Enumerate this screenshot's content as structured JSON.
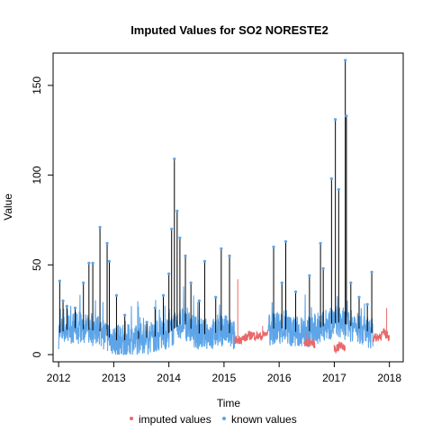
{
  "chart_data": {
    "type": "line",
    "title": "Imputed Values for  SO2 NORESTE2",
    "xlabel": "Time",
    "ylabel": "Value",
    "xlim": [
      2011.9,
      2018.25
    ],
    "ylim": [
      -4,
      168
    ],
    "x_ticks": [
      2012,
      2013,
      2014,
      2015,
      2016,
      2017,
      2018
    ],
    "x_tick_labels": [
      "2012",
      "2013",
      "2014",
      "2015",
      "2016",
      "2017",
      "2018"
    ],
    "y_ticks": [
      0,
      50,
      100,
      150
    ],
    "y_tick_labels": [
      "0",
      "50",
      "100",
      "150"
    ],
    "grid": false,
    "legend_position": "bottom",
    "series": [
      {
        "name": "imputed values",
        "color": "#E8696B",
        "segments": [
          {
            "x": [
              2015.2,
              2015.35,
              2015.5,
              2015.65,
              2015.8
            ],
            "y": [
              8,
              9,
              11,
              10,
              12
            ]
          },
          {
            "x": [
              2016.45,
              2016.55,
              2016.65
            ],
            "y": [
              6,
              7,
              6
            ]
          },
          {
            "x": [
              2017.0,
              2017.1,
              2017.2
            ],
            "y": [
              3,
              5,
              4
            ]
          },
          {
            "x": [
              2017.7,
              2017.8,
              2017.9,
              2018.0
            ],
            "y": [
              9,
              10,
              12,
              10
            ]
          }
        ],
        "spikes": [
          {
            "x": 2015.25,
            "y": 42
          },
          {
            "x": 2015.7,
            "y": 16
          },
          {
            "x": 2016.5,
            "y": 12
          },
          {
            "x": 2017.95,
            "y": 26
          }
        ]
      },
      {
        "name": "known values",
        "color": "#5DA5E8",
        "baseline": [
          {
            "x": 2012.0,
            "y": 12
          },
          {
            "x": 2012.25,
            "y": 15
          },
          {
            "x": 2012.5,
            "y": 14
          },
          {
            "x": 2012.75,
            "y": 13
          },
          {
            "x": 2013.0,
            "y": 8
          },
          {
            "x": 2013.25,
            "y": 8
          },
          {
            "x": 2013.5,
            "y": 9
          },
          {
            "x": 2013.75,
            "y": 10
          },
          {
            "x": 2014.0,
            "y": 12
          },
          {
            "x": 2014.25,
            "y": 18
          },
          {
            "x": 2014.5,
            "y": 12
          },
          {
            "x": 2014.75,
            "y": 11
          },
          {
            "x": 2015.0,
            "y": 14
          },
          {
            "x": 2015.2,
            "y": 10
          },
          {
            "x": 2015.8,
            "y": 14
          },
          {
            "x": 2016.0,
            "y": 15
          },
          {
            "x": 2016.25,
            "y": 13
          },
          {
            "x": 2016.45,
            "y": 12
          },
          {
            "x": 2016.65,
            "y": 14
          },
          {
            "x": 2016.9,
            "y": 17
          },
          {
            "x": 2017.1,
            "y": 18
          },
          {
            "x": 2017.4,
            "y": 15
          },
          {
            "x": 2017.7,
            "y": 12
          }
        ],
        "peaks": [
          {
            "x": 2012.02,
            "y": 41
          },
          {
            "x": 2012.08,
            "y": 30
          },
          {
            "x": 2012.15,
            "y": 27
          },
          {
            "x": 2012.3,
            "y": 26
          },
          {
            "x": 2012.45,
            "y": 40
          },
          {
            "x": 2012.55,
            "y": 51
          },
          {
            "x": 2012.62,
            "y": 51
          },
          {
            "x": 2012.75,
            "y": 71
          },
          {
            "x": 2012.88,
            "y": 62
          },
          {
            "x": 2012.92,
            "y": 52
          },
          {
            "x": 2013.05,
            "y": 33
          },
          {
            "x": 2013.2,
            "y": 22
          },
          {
            "x": 2013.45,
            "y": 14
          },
          {
            "x": 2013.6,
            "y": 18
          },
          {
            "x": 2013.75,
            "y": 26
          },
          {
            "x": 2013.9,
            "y": 33
          },
          {
            "x": 2014.0,
            "y": 45
          },
          {
            "x": 2014.05,
            "y": 70
          },
          {
            "x": 2014.1,
            "y": 109
          },
          {
            "x": 2014.15,
            "y": 80
          },
          {
            "x": 2014.2,
            "y": 65
          },
          {
            "x": 2014.3,
            "y": 55
          },
          {
            "x": 2014.4,
            "y": 40
          },
          {
            "x": 2014.55,
            "y": 30
          },
          {
            "x": 2014.65,
            "y": 52
          },
          {
            "x": 2014.85,
            "y": 32
          },
          {
            "x": 2014.95,
            "y": 59
          },
          {
            "x": 2015.1,
            "y": 55
          },
          {
            "x": 2015.9,
            "y": 60
          },
          {
            "x": 2016.05,
            "y": 40
          },
          {
            "x": 2016.12,
            "y": 63
          },
          {
            "x": 2016.3,
            "y": 35
          },
          {
            "x": 2016.55,
            "y": 44
          },
          {
            "x": 2016.75,
            "y": 62
          },
          {
            "x": 2016.8,
            "y": 48
          },
          {
            "x": 2016.95,
            "y": 98
          },
          {
            "x": 2017.02,
            "y": 131
          },
          {
            "x": 2017.08,
            "y": 92
          },
          {
            "x": 2017.2,
            "y": 164
          },
          {
            "x": 2017.22,
            "y": 133
          },
          {
            "x": 2017.3,
            "y": 40
          },
          {
            "x": 2017.45,
            "y": 32
          },
          {
            "x": 2017.6,
            "y": 28
          },
          {
            "x": 2017.68,
            "y": 46
          }
        ]
      }
    ]
  }
}
